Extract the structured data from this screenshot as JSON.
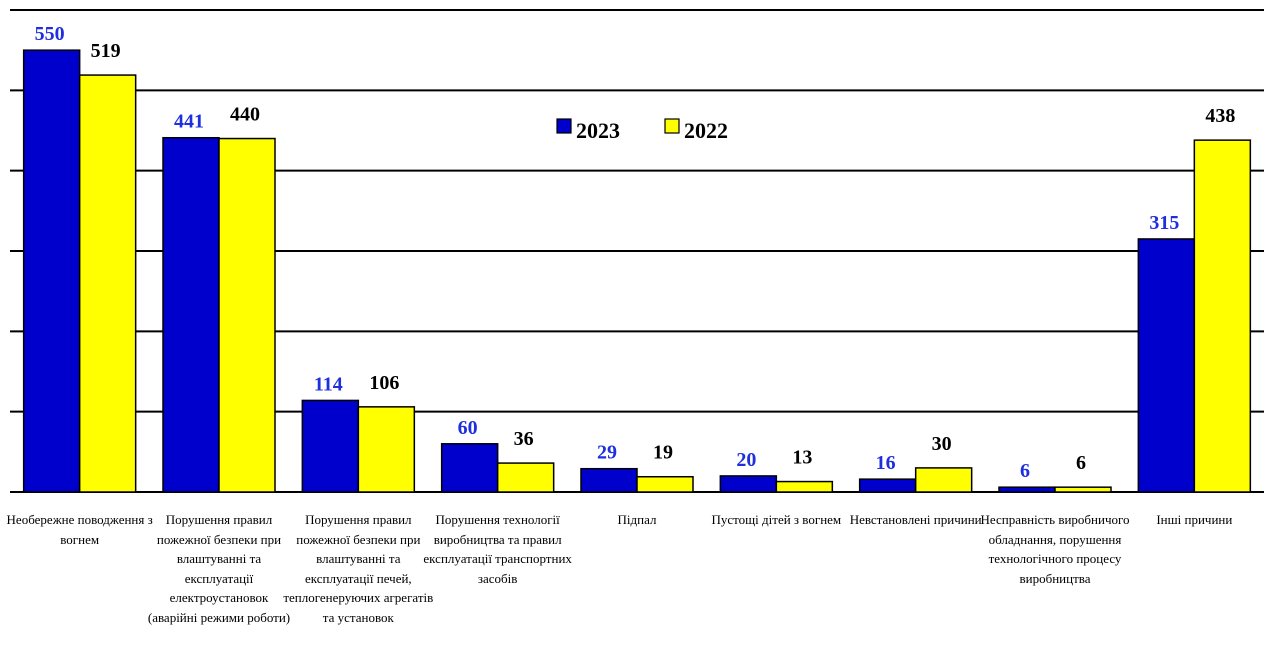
{
  "chart_data": {
    "type": "bar",
    "title": "",
    "xlabel": "",
    "ylabel": "",
    "ylim": [
      0,
      600
    ],
    "grid": true,
    "legend_position": "top-center",
    "categories": [
      "Необережне поводження з вогнем",
      "Порушення правил пожежної безпеки при влаштуванні та експлуатації електроустановок (аварійні режими роботи)",
      "Порушення правил пожежної безпеки при влаштуванні та експлуатації печей, теплогенеруючих агрегатів та установок",
      "Порушення технології виробництва та правил експлуатації транспортних засобів",
      "Підпал",
      "Пустощі дітей з вогнем",
      "Невстановлені причини",
      "Несправність виробничого обладнання, порушення технологічного процесу виробництва",
      "Інші причини"
    ],
    "series": [
      {
        "name": "2023",
        "color": "#0000CC",
        "label_color": "#1F2FE0",
        "values": [
          550,
          441,
          114,
          60,
          29,
          20,
          16,
          6,
          315
        ]
      },
      {
        "name": "2022",
        "color": "#FFFF00",
        "label_color": "#000000",
        "values": [
          519,
          440,
          106,
          36,
          19,
          13,
          30,
          6,
          438
        ]
      }
    ]
  }
}
